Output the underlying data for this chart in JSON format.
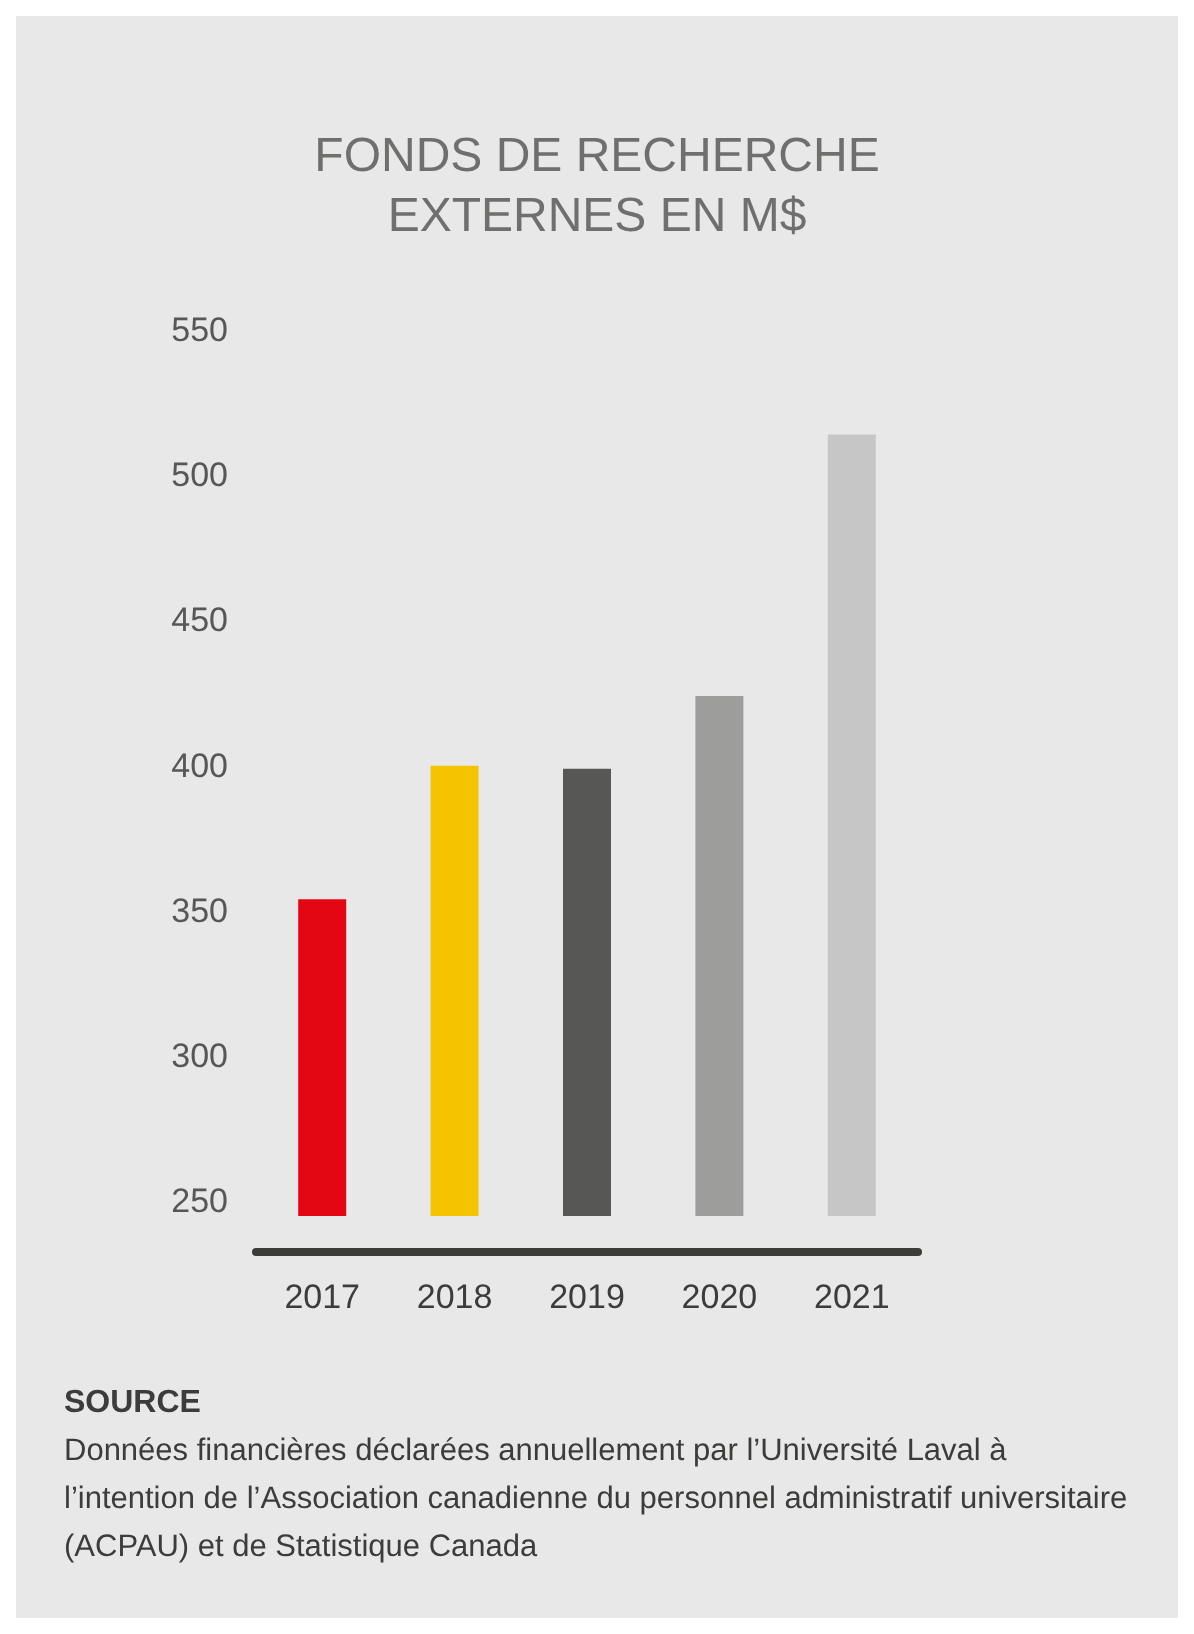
{
  "chart_data": {
    "type": "bar",
    "title": "FONDS DE RECHERCHE\nEXTERNES EN M$",
    "categories": [
      "2017",
      "2018",
      "2019",
      "2020",
      "2021"
    ],
    "values": [
      354,
      400,
      399,
      424,
      514
    ],
    "colors": [
      "#e30613",
      "#f5c400",
      "#575756",
      "#9d9d9c",
      "#c6c6c6"
    ],
    "ylim": [
      245,
      550
    ],
    "yticks": [
      250,
      300,
      350,
      400,
      450,
      500,
      550
    ],
    "grid": false,
    "annotations": [
      "SOURCE",
      "Données financières déclarées annuellement par l’Université Laval à l’intention de l’Association canadienne du personnel administratif universitaire (ACPAU) et de Statistique Canada"
    ]
  }
}
